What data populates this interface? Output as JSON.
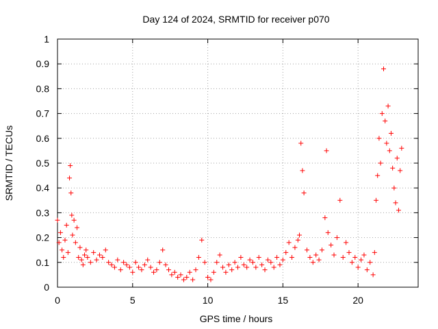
{
  "chart_data": {
    "type": "scatter",
    "title": "Day 124 of 2024, SRMTID for receiver p070",
    "xlabel": "GPS time / hours",
    "ylabel": "SRMTID / TECUs",
    "xlim": [
      0,
      24
    ],
    "ylim": [
      0,
      1
    ],
    "xticks": [
      0,
      5,
      10,
      15,
      20
    ],
    "xtick_labels": [
      "0",
      "5",
      "10",
      "15",
      "20"
    ],
    "yticks": [
      0,
      0.1,
      0.2,
      0.3,
      0.4,
      0.5,
      0.6,
      0.7,
      0.8,
      0.9,
      1
    ],
    "ytick_labels": [
      "0",
      "0.1",
      "0.2",
      "0.3",
      "0.4",
      "0.5",
      "0.6",
      "0.7",
      "0.8",
      "0.9",
      "1"
    ],
    "grid": true,
    "marker": "+",
    "color": "#ff0000",
    "series": [
      {
        "name": "p070",
        "x": [
          0.0,
          0.1,
          0.2,
          0.3,
          0.4,
          0.5,
          0.6,
          0.7,
          0.8,
          0.85,
          0.9,
          0.95,
          1.0,
          1.1,
          1.2,
          1.3,
          1.4,
          1.5,
          1.6,
          1.7,
          1.8,
          1.9,
          2.0,
          2.2,
          2.4,
          2.6,
          2.8,
          3.0,
          3.2,
          3.4,
          3.6,
          3.8,
          4.0,
          4.2,
          4.4,
          4.6,
          4.8,
          5.0,
          5.2,
          5.4,
          5.6,
          5.8,
          6.0,
          6.2,
          6.4,
          6.6,
          6.8,
          7.0,
          7.2,
          7.4,
          7.6,
          7.8,
          8.0,
          8.2,
          8.4,
          8.6,
          8.8,
          9.0,
          9.2,
          9.4,
          9.6,
          9.8,
          10.0,
          10.2,
          10.4,
          10.6,
          10.8,
          11.0,
          11.2,
          11.4,
          11.6,
          11.8,
          12.0,
          12.2,
          12.4,
          12.6,
          12.8,
          13.0,
          13.2,
          13.4,
          13.6,
          13.8,
          14.0,
          14.2,
          14.4,
          14.6,
          14.8,
          15.0,
          15.2,
          15.4,
          15.6,
          15.8,
          16.0,
          16.1,
          16.2,
          16.3,
          16.4,
          16.6,
          16.8,
          17.0,
          17.2,
          17.4,
          17.6,
          17.8,
          17.9,
          18.0,
          18.2,
          18.4,
          18.6,
          18.8,
          19.0,
          19.2,
          19.4,
          19.6,
          19.8,
          20.0,
          20.2,
          20.4,
          20.6,
          20.8,
          21.0,
          21.1,
          21.2,
          21.3,
          21.4,
          21.5,
          21.6,
          21.7,
          21.8,
          21.9,
          22.0,
          22.1,
          22.2,
          22.3,
          22.4,
          22.5,
          22.6,
          22.7,
          22.8,
          22.9
        ],
        "y": [
          0.27,
          0.18,
          0.22,
          0.15,
          0.12,
          0.19,
          0.25,
          0.14,
          0.44,
          0.49,
          0.38,
          0.29,
          0.21,
          0.27,
          0.18,
          0.24,
          0.12,
          0.16,
          0.11,
          0.09,
          0.13,
          0.15,
          0.12,
          0.1,
          0.14,
          0.11,
          0.13,
          0.12,
          0.15,
          0.1,
          0.09,
          0.08,
          0.11,
          0.07,
          0.1,
          0.09,
          0.08,
          0.06,
          0.1,
          0.08,
          0.07,
          0.09,
          0.11,
          0.08,
          0.06,
          0.07,
          0.1,
          0.15,
          0.09,
          0.07,
          0.05,
          0.06,
          0.04,
          0.05,
          0.03,
          0.04,
          0.06,
          0.03,
          0.07,
          0.12,
          0.19,
          0.1,
          0.04,
          0.03,
          0.06,
          0.1,
          0.13,
          0.08,
          0.06,
          0.09,
          0.07,
          0.1,
          0.08,
          0.12,
          0.09,
          0.08,
          0.11,
          0.1,
          0.08,
          0.12,
          0.09,
          0.07,
          0.11,
          0.1,
          0.08,
          0.12,
          0.09,
          0.11,
          0.14,
          0.18,
          0.12,
          0.16,
          0.19,
          0.21,
          0.58,
          0.47,
          0.38,
          0.15,
          0.12,
          0.1,
          0.13,
          0.11,
          0.15,
          0.28,
          0.55,
          0.22,
          0.17,
          0.13,
          0.2,
          0.35,
          0.12,
          0.18,
          0.14,
          0.1,
          0.12,
          0.08,
          0.11,
          0.13,
          0.07,
          0.1,
          0.05,
          0.14,
          0.35,
          0.45,
          0.6,
          0.5,
          0.7,
          0.88,
          0.67,
          0.58,
          0.73,
          0.55,
          0.62,
          0.48,
          0.4,
          0.34,
          0.52,
          0.31,
          0.47,
          0.56
        ]
      }
    ]
  }
}
